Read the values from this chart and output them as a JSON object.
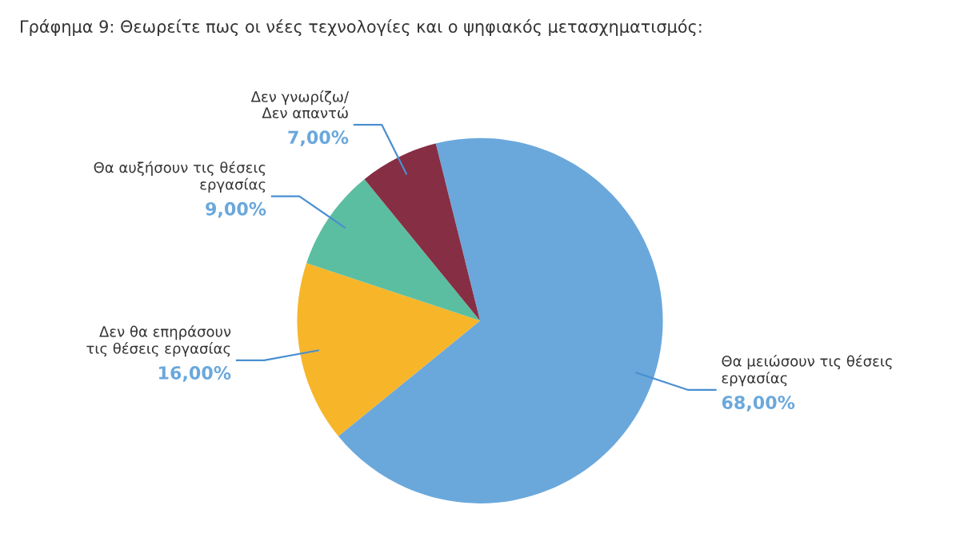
{
  "chart_data": {
    "type": "pie",
    "title": "Γράφημα 9: Θεωρείτε πως οι νέες τεχνολογίες και ο ψηφιακός μετασχηματισμός:",
    "categories": [
      "Θα μειώσουν τις θέσεις\nεργασίας",
      "Δεν θα επηράσουν\nτις θέσεις εργασίας",
      "Θα αυξήσουν τις θέσεις\nεργασίας",
      "Δεν γνωρίζω/\nΔεν απαντώ"
    ],
    "values": [
      68,
      16,
      9,
      7
    ],
    "colors": [
      "#6aa8dc",
      "#f7b52a",
      "#5bbea0",
      "#862e44"
    ],
    "value_labels": [
      "68,00%",
      "16,00%",
      "9,00%",
      "7,00%"
    ]
  }
}
